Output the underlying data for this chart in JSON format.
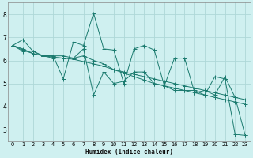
{
  "xlabel": "Humidex (Indice chaleur)",
  "bg_color": "#cff0f0",
  "grid_color": "#aed8d8",
  "line_color": "#1a7a6e",
  "xlim": [
    -0.5,
    23.5
  ],
  "ylim": [
    2.5,
    8.5
  ],
  "yticks": [
    3,
    4,
    5,
    6,
    7,
    8
  ],
  "xticks": [
    0,
    1,
    2,
    3,
    4,
    5,
    6,
    7,
    8,
    9,
    10,
    11,
    12,
    13,
    14,
    15,
    16,
    17,
    18,
    19,
    20,
    21,
    22,
    23
  ],
  "series": [
    [
      6.65,
      6.9,
      6.4,
      6.2,
      6.2,
      5.2,
      6.8,
      6.65,
      8.05,
      6.5,
      6.45,
      5.0,
      6.5,
      6.65,
      6.45,
      4.9,
      6.1,
      6.1,
      4.6,
      4.7,
      4.5,
      5.3,
      4.4,
      2.75
    ],
    [
      6.65,
      6.4,
      6.4,
      6.2,
      6.2,
      6.2,
      6.1,
      6.5,
      4.5,
      5.5,
      5.0,
      5.1,
      5.5,
      5.5,
      5.0,
      4.9,
      4.7,
      4.7,
      4.7,
      4.5,
      5.3,
      5.2,
      2.8,
      2.75
    ],
    [
      6.65,
      6.5,
      6.3,
      6.2,
      6.1,
      6.1,
      6.1,
      6.2,
      6.0,
      5.85,
      5.6,
      5.45,
      5.3,
      5.15,
      5.0,
      4.9,
      4.8,
      4.7,
      4.6,
      4.5,
      4.4,
      4.3,
      4.2,
      4.1
    ],
    [
      6.65,
      6.45,
      6.3,
      6.2,
      6.15,
      6.1,
      6.05,
      5.95,
      5.85,
      5.75,
      5.6,
      5.5,
      5.4,
      5.3,
      5.2,
      5.1,
      5.0,
      4.9,
      4.8,
      4.7,
      4.6,
      4.5,
      4.4,
      4.3
    ]
  ]
}
